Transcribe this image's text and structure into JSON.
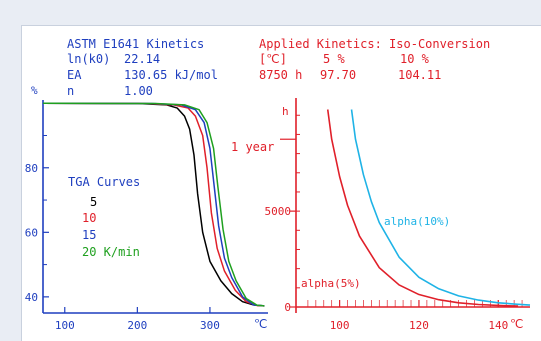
{
  "header": {
    "left_title": "ASTM E1641 Kinetics",
    "lnk0_label": "ln(k0)",
    "lnk0_value": "22.14",
    "ea_label": "EA",
    "ea_value": "130.65 kJ/mol",
    "n_label": "n",
    "n_value": "1.00",
    "right_title": "Applied Kinetics: Iso-Conversion",
    "table_header_unit": "[℃]",
    "table_col1": "5 %",
    "table_col2": "10 %",
    "row_label": "8750 h",
    "row_val1": "97.70",
    "row_val2": "104.11"
  },
  "chart_data": [
    {
      "type": "line",
      "ylabel": "%",
      "xlabel": "℃",
      "xlim": [
        70,
        380
      ],
      "ylim": [
        35,
        101
      ],
      "x_ticks": [
        100,
        200,
        300
      ],
      "y_ticks": [
        40,
        60,
        80
      ],
      "legend_title": "TGA Curves",
      "legend_suffix": "K/min",
      "series": [
        {
          "name": "5",
          "color": "#000000",
          "x": [
            70,
            200,
            240,
            255,
            265,
            272,
            278,
            283,
            290,
            300,
            315,
            330,
            345,
            360,
            375
          ],
          "y": [
            100,
            99.9,
            99.5,
            98.5,
            96,
            92,
            84,
            72,
            60,
            51,
            45,
            41,
            38.5,
            37.5,
            37.2
          ]
        },
        {
          "name": "10",
          "color": "#e0202a",
          "x": [
            70,
            210,
            250,
            270,
            280,
            290,
            296,
            302,
            310,
            320,
            335,
            350,
            365,
            375
          ],
          "y": [
            100,
            99.9,
            99.5,
            98.5,
            96,
            90,
            80,
            66,
            55,
            48,
            42,
            38.5,
            37.3,
            37.2
          ]
        },
        {
          "name": "15",
          "color": "#1f3fbf",
          "x": [
            70,
            220,
            260,
            280,
            292,
            300,
            306,
            312,
            320,
            330,
            345,
            360,
            375
          ],
          "y": [
            100,
            99.9,
            99.5,
            98,
            94,
            86,
            74,
            62,
            52,
            46,
            40,
            37.5,
            37.2
          ]
        },
        {
          "name": "20",
          "color": "#1fa01f",
          "x": [
            70,
            225,
            265,
            285,
            296,
            305,
            311,
            318,
            326,
            336,
            350,
            365,
            375
          ],
          "y": [
            100,
            99.9,
            99.5,
            98,
            94,
            86,
            74,
            61,
            51,
            45,
            39.5,
            37.4,
            37.2
          ]
        }
      ]
    },
    {
      "type": "line",
      "ylabel": "h",
      "xlabel": "℃",
      "xlim": [
        89,
        148
      ],
      "ylim": [
        0,
        10900
      ],
      "x_ticks": [
        100,
        120,
        140
      ],
      "y_ticks": [
        0,
        5000
      ],
      "annotation": "1 year",
      "annotation_value": 8750,
      "series": [
        {
          "name": "alpha(5%)",
          "color": "#e0202a",
          "x": [
            97,
            98,
            100,
            102,
            105,
            110,
            115,
            120,
            125,
            130,
            135,
            140,
            145
          ],
          "y": [
            10300,
            8750,
            6800,
            5300,
            3700,
            2050,
            1150,
            650,
            380,
            220,
            130,
            80,
            50
          ]
        },
        {
          "name": "alpha(10%)",
          "color": "#1fb3e6",
          "x": [
            103,
            104,
            106,
            108,
            110,
            115,
            120,
            125,
            130,
            135,
            140,
            145,
            148
          ],
          "y": [
            10300,
            8750,
            6900,
            5500,
            4400,
            2600,
            1550,
            950,
            580,
            360,
            220,
            140,
            100
          ]
        }
      ]
    }
  ]
}
